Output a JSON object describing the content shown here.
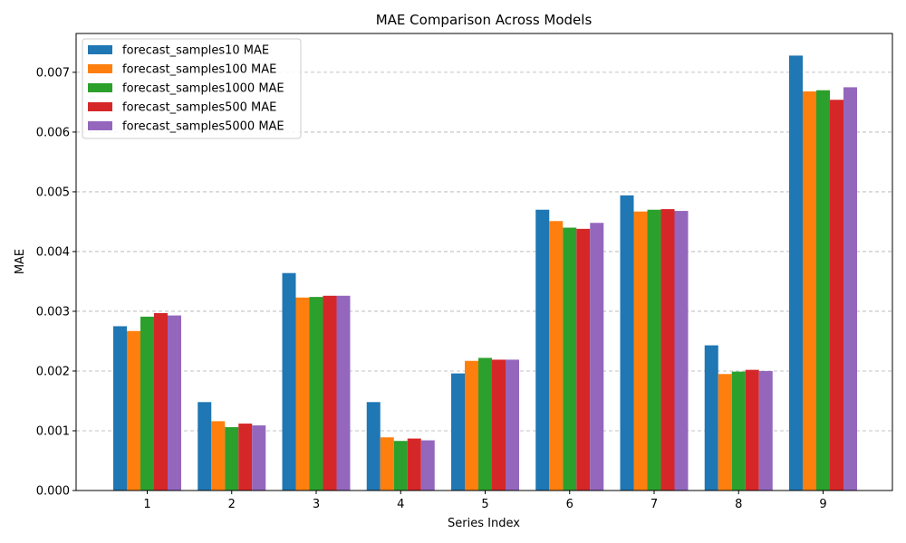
{
  "chart_data": {
    "type": "bar",
    "title": "MAE Comparison Across Models",
    "xlabel": "Series Index",
    "ylabel": "MAE",
    "categories": [
      "1",
      "2",
      "3",
      "4",
      "5",
      "6",
      "7",
      "8",
      "9"
    ],
    "ylim": [
      0,
      0.00765
    ],
    "yticks": [
      "0.000",
      "0.001",
      "0.002",
      "0.003",
      "0.004",
      "0.005",
      "0.006",
      "0.007"
    ],
    "ytick_values": [
      0,
      0.001,
      0.002,
      0.003,
      0.004,
      0.005,
      0.006,
      0.007
    ],
    "grid": "y-dashed",
    "legend_position": "top-left",
    "series": [
      {
        "name": "forecast_samples10 MAE",
        "color": "#1f77b4",
        "values": [
          0.00275,
          0.00148,
          0.00364,
          0.00148,
          0.00196,
          0.0047,
          0.00494,
          0.00243,
          0.00728
        ]
      },
      {
        "name": "forecast_samples100 MAE",
        "color": "#ff7f0e",
        "values": [
          0.00267,
          0.00116,
          0.00323,
          0.00089,
          0.00217,
          0.00451,
          0.00467,
          0.00195,
          0.00668
        ]
      },
      {
        "name": "forecast_samples1000 MAE",
        "color": "#2ca02c",
        "values": [
          0.00291,
          0.00106,
          0.00324,
          0.00083,
          0.00222,
          0.0044,
          0.0047,
          0.00199,
          0.0067
        ]
      },
      {
        "name": "forecast_samples500 MAE",
        "color": "#d62728",
        "values": [
          0.00297,
          0.00112,
          0.00326,
          0.00087,
          0.00219,
          0.00438,
          0.00471,
          0.00202,
          0.00654
        ]
      },
      {
        "name": "forecast_samples5000 MAE",
        "color": "#9467bd",
        "values": [
          0.00293,
          0.00109,
          0.00326,
          0.00084,
          0.00219,
          0.00448,
          0.00468,
          0.002,
          0.00675
        ]
      }
    ]
  }
}
